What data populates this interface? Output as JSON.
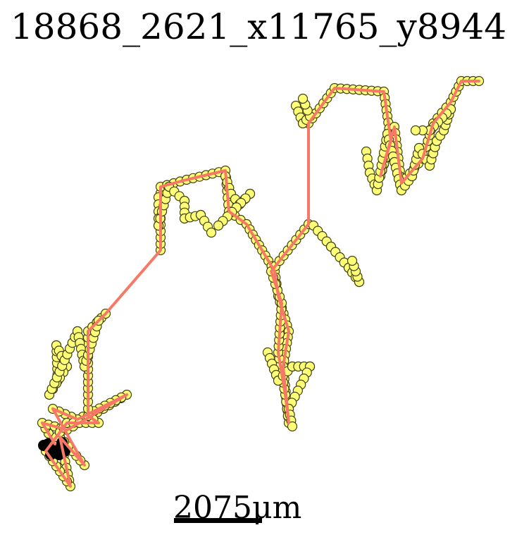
{
  "title": "18868_2621_x11765_y8944",
  "scale": {
    "label": "2075μm"
  },
  "colors": {
    "background": "#ffffff",
    "track": "#f87868",
    "marker_fill": "#ffff77",
    "marker_edge": "#404010",
    "start_blob": "#000000",
    "text": "#000000"
  }
}
